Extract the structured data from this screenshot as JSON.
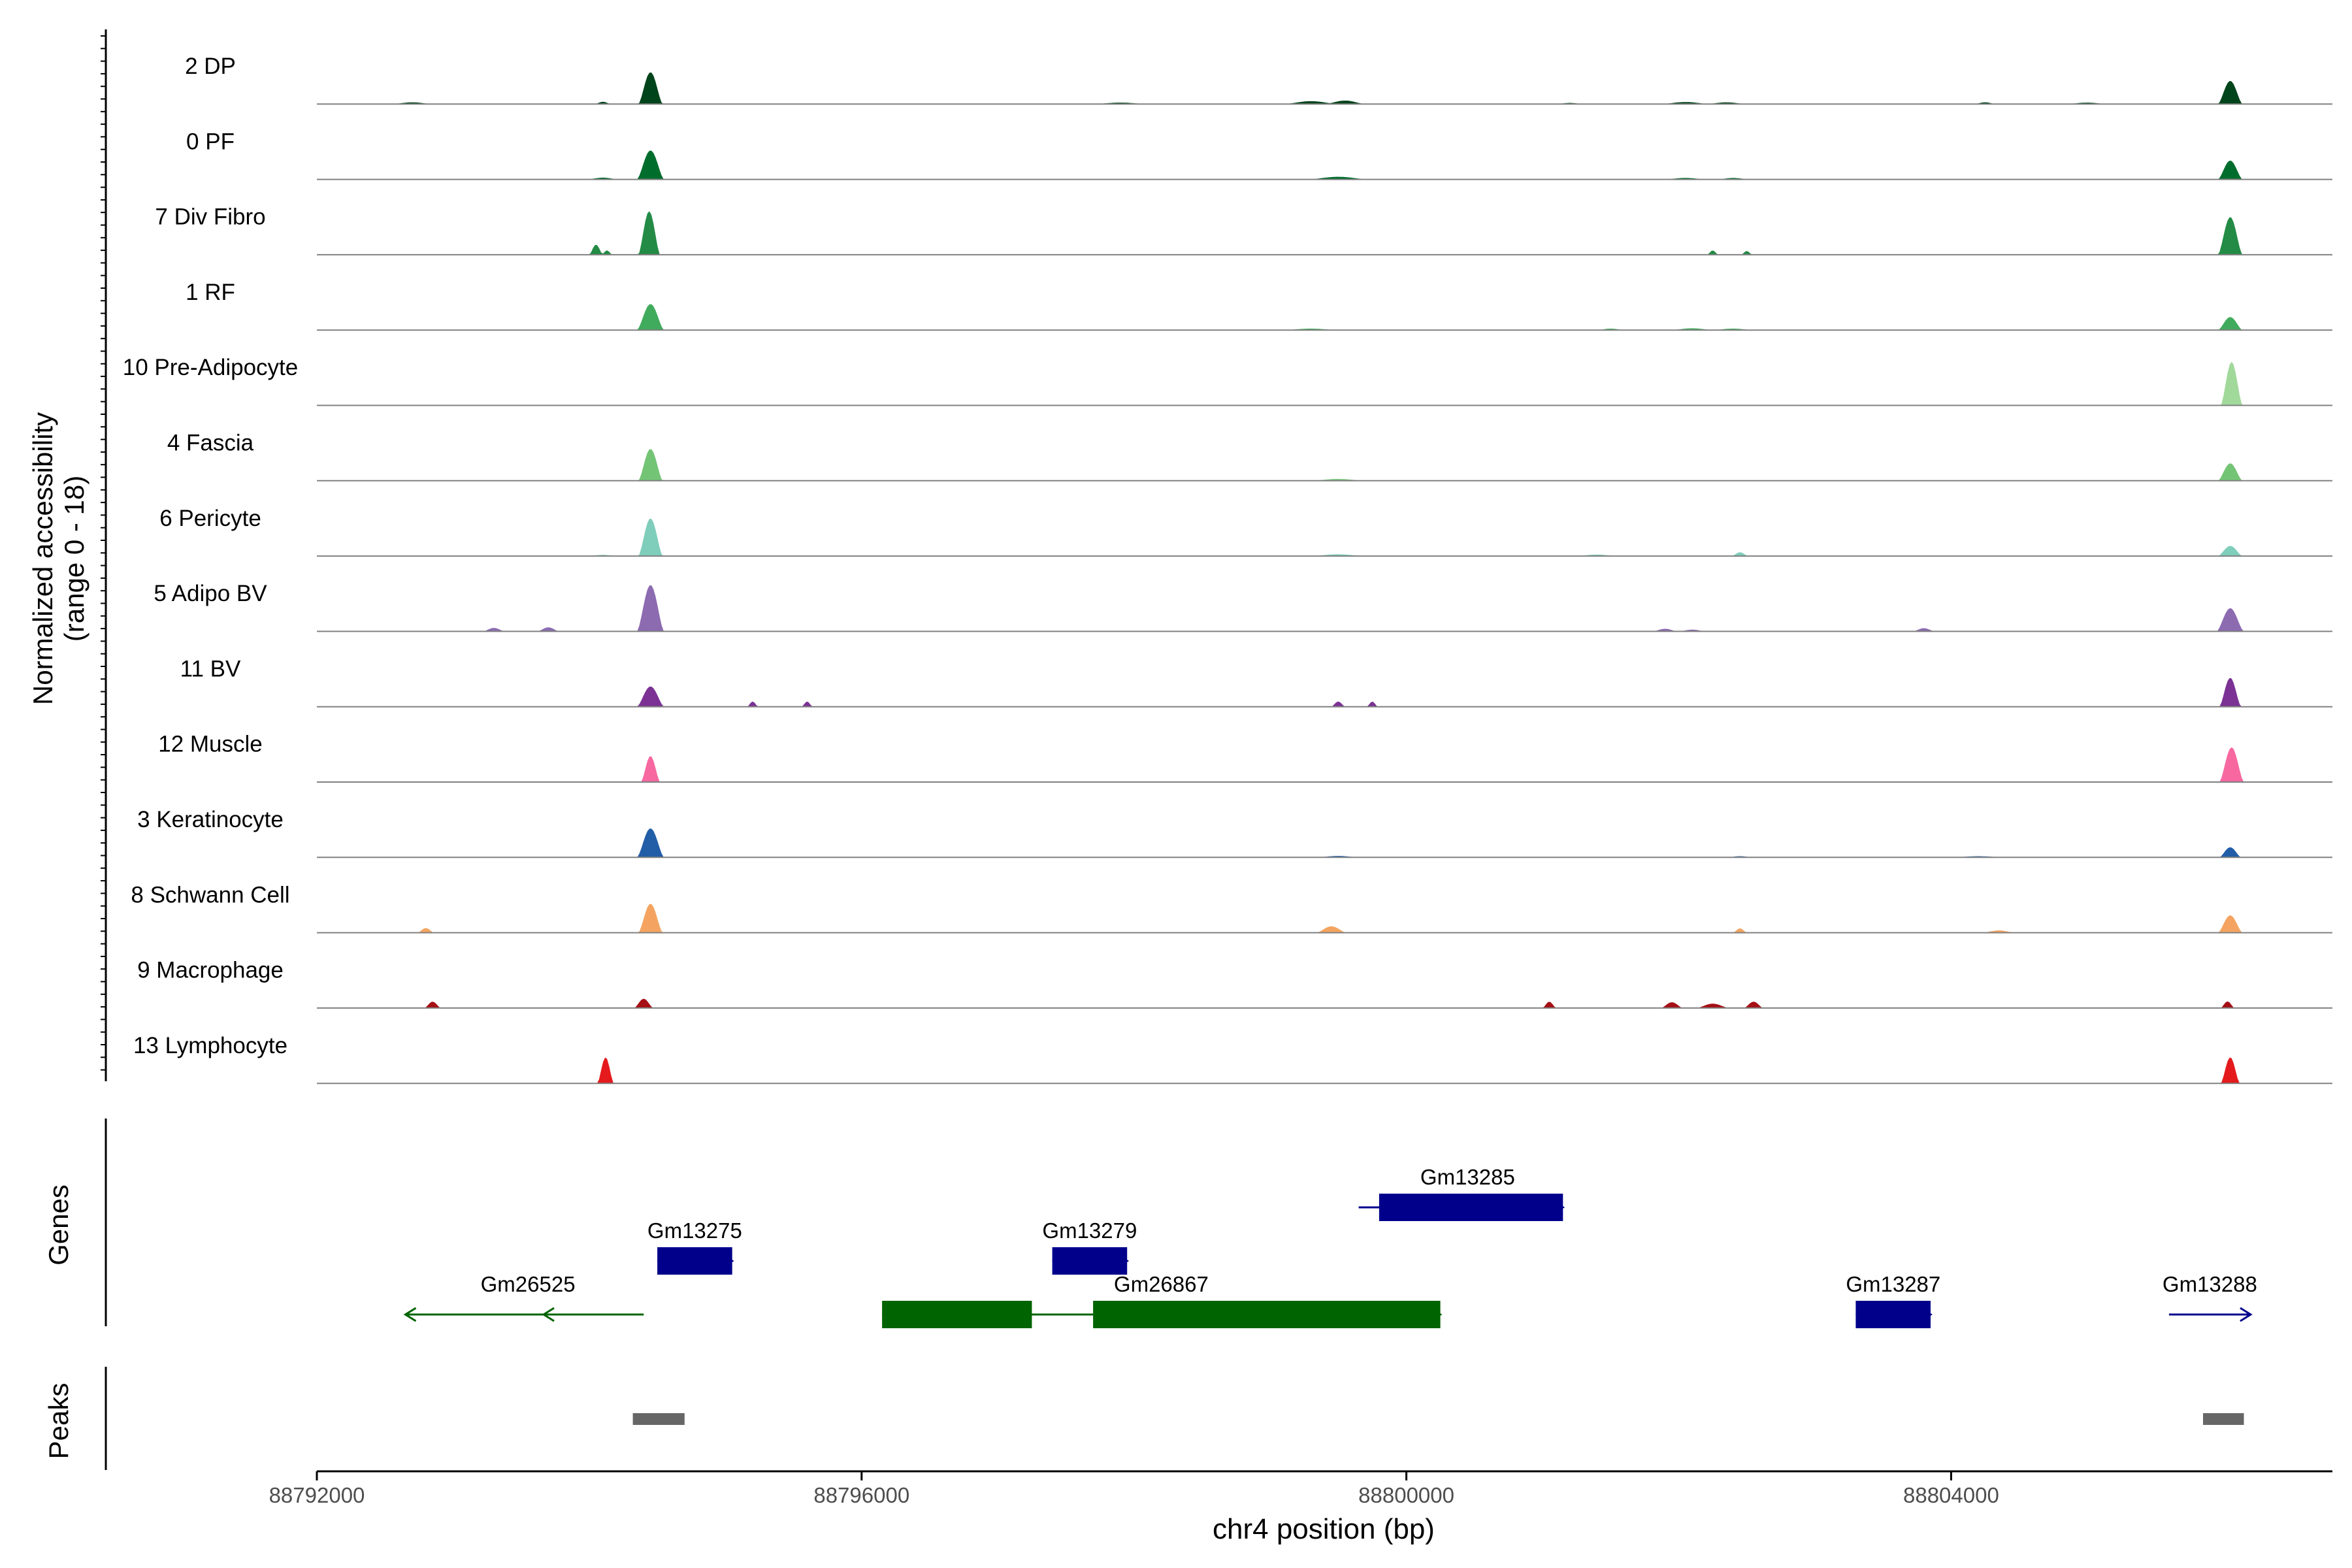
{
  "chart_data": {
    "type": "area",
    "title": "",
    "ylabel_line1": "Normalized accessibility",
    "ylabel_line2": "(range 0 - 18)",
    "xlabel": "chr4 position (bp)",
    "xlim": [
      88792000,
      88806800
    ],
    "ylim": [
      0,
      18
    ],
    "x_ticks": [
      {
        "value": 88792000,
        "label": "88792000"
      },
      {
        "value": 88796000,
        "label": "88796000"
      },
      {
        "value": 88800000,
        "label": "88800000"
      },
      {
        "value": 88804000,
        "label": "88804000"
      }
    ],
    "panel_labels": {
      "genes": "Genes",
      "peaks": "Peaks"
    },
    "series": [
      {
        "name": "2 DP",
        "color": "#00441b",
        "peaks": [
          [
            88792700,
            0.6,
            150
          ],
          [
            88794100,
            0.8,
            60
          ],
          [
            88794450,
            11,
            90
          ],
          [
            88797900,
            0.5,
            200
          ],
          [
            88799300,
            1.0,
            200
          ],
          [
            88799550,
            1.2,
            150
          ],
          [
            88801200,
            0.4,
            100
          ],
          [
            88802050,
            0.7,
            180
          ],
          [
            88802350,
            0.6,
            150
          ],
          [
            88804250,
            0.6,
            80
          ],
          [
            88805000,
            0.5,
            150
          ],
          [
            88806050,
            8,
            90
          ]
        ]
      },
      {
        "name": "0 PF",
        "color": "#006d2c",
        "peaks": [
          [
            88794100,
            0.6,
            120
          ],
          [
            88794450,
            10,
            100
          ],
          [
            88799500,
            0.9,
            220
          ],
          [
            88802050,
            0.5,
            160
          ],
          [
            88802400,
            0.5,
            120
          ],
          [
            88806050,
            6.5,
            90
          ]
        ]
      },
      {
        "name": "7 Div Fibro",
        "color": "#238b45",
        "peaks": [
          [
            88794050,
            3.5,
            50
          ],
          [
            88794130,
            1.5,
            40
          ],
          [
            88794440,
            15,
            80
          ],
          [
            88802250,
            1.5,
            40
          ],
          [
            88802500,
            1.3,
            40
          ],
          [
            88806050,
            13,
            90
          ]
        ]
      },
      {
        "name": "1 RF",
        "color": "#41ab5d",
        "peaks": [
          [
            88794450,
            9,
            100
          ],
          [
            88799300,
            0.5,
            200
          ],
          [
            88801500,
            0.5,
            100
          ],
          [
            88802100,
            0.6,
            160
          ],
          [
            88802400,
            0.5,
            150
          ],
          [
            88806050,
            4.5,
            90
          ]
        ]
      },
      {
        "name": "10 Pre-Adipocyte",
        "color": "#a1d99b",
        "peaks": [
          [
            88806060,
            15,
            80
          ]
        ]
      },
      {
        "name": "4 Fascia",
        "color": "#74c476",
        "peaks": [
          [
            88794450,
            11,
            90
          ],
          [
            88799500,
            0.6,
            200
          ],
          [
            88806050,
            6,
            90
          ]
        ]
      },
      {
        "name": "6 Pericyte",
        "color": "#7fcdbb",
        "peaks": [
          [
            88794100,
            0.4,
            120
          ],
          [
            88794450,
            13,
            90
          ],
          [
            88799500,
            0.6,
            200
          ],
          [
            88801400,
            0.5,
            150
          ],
          [
            88802450,
            1.3,
            60
          ],
          [
            88806050,
            3.5,
            90
          ]
        ]
      },
      {
        "name": "5 Adipo BV",
        "color": "#8c6bb1",
        "peaks": [
          [
            88793300,
            1.2,
            80
          ],
          [
            88793700,
            1.4,
            80
          ],
          [
            88794450,
            16,
            100
          ],
          [
            88801900,
            0.9,
            90
          ],
          [
            88802100,
            0.6,
            100
          ],
          [
            88803800,
            1.1,
            80
          ],
          [
            88806050,
            8,
            100
          ]
        ]
      },
      {
        "name": "11 BV",
        "color": "#7b3294",
        "peaks": [
          [
            88794450,
            7,
            100
          ],
          [
            88795200,
            1.8,
            40
          ],
          [
            88795600,
            1.8,
            40
          ],
          [
            88799500,
            1.8,
            50
          ],
          [
            88799750,
            1.8,
            40
          ],
          [
            88806050,
            10,
            80
          ]
        ]
      },
      {
        "name": "12 Muscle",
        "color": "#f768a1",
        "peaks": [
          [
            88794450,
            9,
            70
          ],
          [
            88806060,
            12,
            90
          ]
        ]
      },
      {
        "name": "3 Keratinocyte",
        "color": "#225ea8",
        "peaks": [
          [
            88794450,
            10,
            100
          ],
          [
            88799500,
            0.5,
            160
          ],
          [
            88802450,
            0.4,
            100
          ],
          [
            88804200,
            0.4,
            200
          ],
          [
            88806050,
            3.5,
            80
          ]
        ]
      },
      {
        "name": "8 Schwann Cell",
        "color": "#f4a460",
        "peaks": [
          [
            88792800,
            1.6,
            60
          ],
          [
            88794450,
            10,
            90
          ],
          [
            88799450,
            2.2,
            110
          ],
          [
            88802450,
            1.5,
            50
          ],
          [
            88804350,
            0.8,
            120
          ],
          [
            88806050,
            6,
            90
          ]
        ]
      },
      {
        "name": "9 Macrophage",
        "color": "#a50f15",
        "peaks": [
          [
            88792850,
            2.2,
            60
          ],
          [
            88794400,
            3.2,
            70
          ],
          [
            88801050,
            2.2,
            50
          ],
          [
            88801950,
            2.0,
            80
          ],
          [
            88802250,
            1.5,
            120
          ],
          [
            88802550,
            2.2,
            70
          ],
          [
            88806030,
            2.3,
            50
          ]
        ]
      },
      {
        "name": "13 Lymphocyte",
        "color": "#e41a1c",
        "peaks": [
          [
            88794120,
            9,
            60
          ],
          [
            88806050,
            9,
            70
          ]
        ]
      }
    ],
    "genes": [
      {
        "name": "Gm26525",
        "color": "#006400",
        "start": 88792650,
        "end": 88794400,
        "strand": "-",
        "row": 3,
        "exons": []
      },
      {
        "name": "Gm13275",
        "color": "#00008b",
        "start": 88794500,
        "end": 88795050,
        "strand": "+",
        "row": 2,
        "exons": [
          [
            88794500,
            88795050
          ]
        ]
      },
      {
        "name": "Gm26867",
        "color": "#006400",
        "start": 88796150,
        "end": 88800250,
        "strand": "+",
        "row": 3,
        "exons": [
          [
            88796150,
            88797250
          ],
          [
            88797700,
            88800250
          ]
        ]
      },
      {
        "name": "Gm13279",
        "color": "#00008b",
        "start": 88797400,
        "end": 88797950,
        "strand": "+",
        "row": 2,
        "exons": [
          [
            88797400,
            88797950
          ]
        ]
      },
      {
        "name": "Gm13285",
        "color": "#00008b",
        "start": 88799650,
        "end": 88801150,
        "strand": "+",
        "row": 1,
        "exons": [
          [
            88799800,
            88801150
          ]
        ]
      },
      {
        "name": "Gm13287",
        "color": "#00008b",
        "start": 88803300,
        "end": 88803850,
        "strand": "+",
        "row": 3,
        "exons": [
          [
            88803300,
            88803850
          ]
        ]
      },
      {
        "name": "Gm13288",
        "color": "#00008b",
        "start": 88805600,
        "end": 88806200,
        "strand": "+",
        "row": 3,
        "exons": []
      }
    ],
    "peaks_track": [
      [
        88794320,
        88794700
      ],
      [
        88805850,
        88806150
      ]
    ],
    "peaks_color": "#666666"
  }
}
